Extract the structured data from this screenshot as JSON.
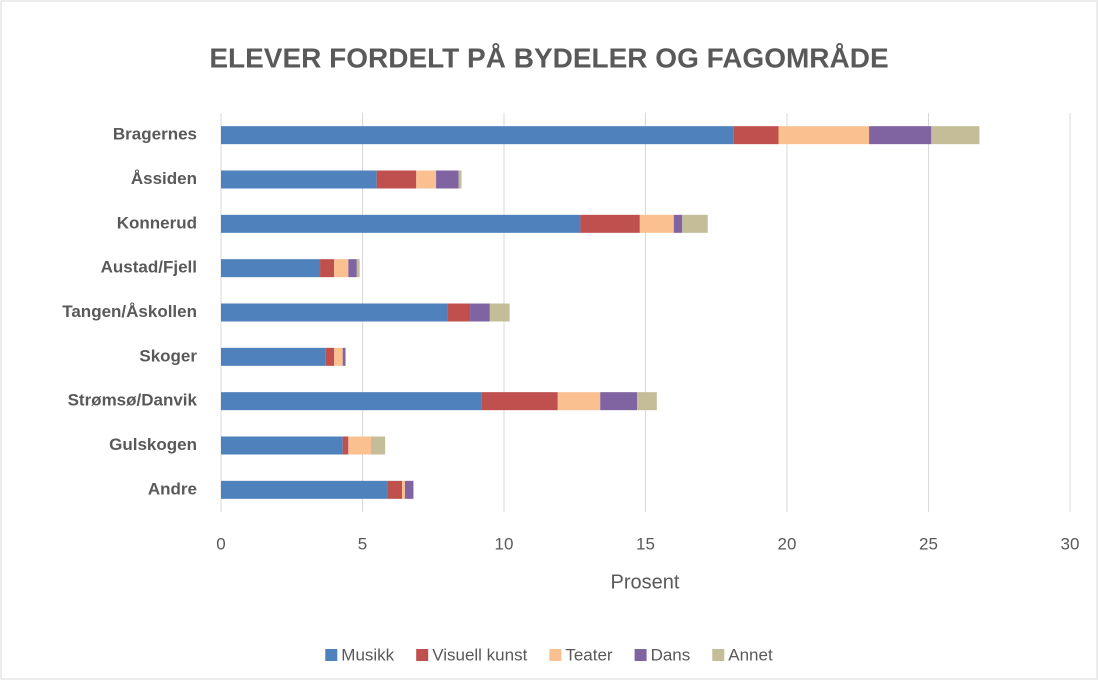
{
  "chart_data": {
    "type": "bar",
    "orientation": "horizontal",
    "stacked": true,
    "title": "ELEVER FORDELT PÅ BYDELER OG FAGOMRÅDE",
    "x_label": "Prosent",
    "categories": [
      "Bragernes",
      "Åssiden",
      "Konnerud",
      "Austad/Fjell",
      "Tangen/Åskollen",
      "Skoger",
      "Strømsø/Danvik",
      "Gulskogen",
      "Andre"
    ],
    "series": [
      {
        "name": "Musikk",
        "color": "#4f81bd",
        "values": [
          18.1,
          5.5,
          12.7,
          3.5,
          8.0,
          3.7,
          9.2,
          4.3,
          5.9
        ]
      },
      {
        "name": "Visuell kunst",
        "color": "#c0504d",
        "values": [
          1.6,
          1.4,
          2.1,
          0.5,
          0.8,
          0.3,
          2.7,
          0.2,
          0.5
        ]
      },
      {
        "name": "Teater",
        "color": "#fac090",
        "values": [
          3.2,
          0.7,
          1.2,
          0.5,
          0,
          0.3,
          1.5,
          0.8,
          0.1
        ]
      },
      {
        "name": "Dans",
        "color": "#8064a2",
        "values": [
          2.2,
          0.8,
          0.3,
          0.3,
          0.7,
          0.1,
          1.3,
          0,
          0.3
        ]
      },
      {
        "name": "Annet",
        "color": "#c4bd97",
        "values": [
          1.7,
          0.1,
          0.9,
          0.1,
          0.7,
          0,
          0.7,
          0.5,
          0
        ]
      }
    ],
    "xlim": [
      0,
      30
    ],
    "xticks": [
      0,
      5,
      10,
      15,
      20,
      25,
      30
    ],
    "grid": true,
    "legend": "bottom"
  }
}
